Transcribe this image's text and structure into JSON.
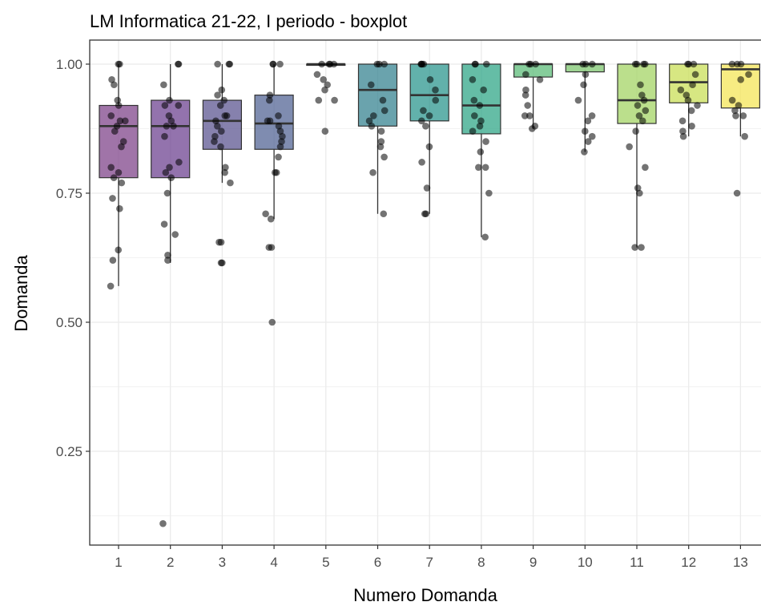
{
  "chart_data": {
    "type": "boxplot",
    "title": "LM Informatica 21-22, I periodo - boxplot",
    "xlabel": "Numero Domanda",
    "ylabel": "Domanda",
    "x_ticks": [
      "1",
      "2",
      "3",
      "4",
      "5",
      "6",
      "7",
      "8",
      "9",
      "10",
      "11",
      "12",
      "13"
    ],
    "y_ticks": [
      "0.25",
      "0.50",
      "0.75",
      "1.00"
    ],
    "y_tick_values": [
      0.25,
      0.5,
      0.75,
      1.0
    ],
    "ylim": [
      0.1,
      1.0
    ],
    "grid": true,
    "categories": [
      {
        "label": "1",
        "color": "#7b3f86",
        "q1": 0.78,
        "median": 0.88,
        "q3": 0.92,
        "whisker_low": 0.57,
        "whisker_high": 1.0,
        "points": [
          1.0,
          1.0,
          0.97,
          0.96,
          0.93,
          0.92,
          0.9,
          0.89,
          0.89,
          0.88,
          0.87,
          0.85,
          0.84,
          0.8,
          0.79,
          0.78,
          0.77,
          0.74,
          0.72,
          0.64,
          0.62,
          0.57
        ]
      },
      {
        "label": "2",
        "color": "#6a3d8e",
        "q1": 0.78,
        "median": 0.88,
        "q3": 0.93,
        "whisker_low": 0.615,
        "whisker_high": 1.0,
        "points": [
          1.0,
          1.0,
          0.96,
          0.93,
          0.92,
          0.92,
          0.9,
          0.89,
          0.88,
          0.88,
          0.86,
          0.81,
          0.8,
          0.79,
          0.78,
          0.75,
          0.69,
          0.67,
          0.63,
          0.62,
          0.11
        ]
      },
      {
        "label": "3",
        "color": "#58508d",
        "q1": 0.835,
        "median": 0.89,
        "q3": 0.93,
        "whisker_low": 0.77,
        "whisker_high": 1.0,
        "points": [
          1.0,
          1.0,
          1.0,
          0.95,
          0.94,
          0.93,
          0.92,
          0.9,
          0.9,
          0.89,
          0.88,
          0.87,
          0.86,
          0.85,
          0.84,
          0.8,
          0.79,
          0.77,
          0.655,
          0.655,
          0.615,
          0.615
        ]
      },
      {
        "label": "4",
        "color": "#4e5f91",
        "q1": 0.835,
        "median": 0.885,
        "q3": 0.94,
        "whisker_low": 0.7,
        "whisker_high": 1.0,
        "points": [
          1.0,
          1.0,
          1.0,
          0.94,
          0.93,
          0.9,
          0.89,
          0.89,
          0.88,
          0.87,
          0.86,
          0.85,
          0.84,
          0.82,
          0.79,
          0.79,
          0.71,
          0.7,
          0.645,
          0.645,
          0.5
        ]
      },
      {
        "label": "5",
        "color": "#3e6e8f",
        "q1": 1.0,
        "median": 1.0,
        "q3": 1.0,
        "whisker_low": 1.0,
        "whisker_high": 1.0,
        "points": [
          1.0,
          1.0,
          1.0,
          1.0,
          0.98,
          0.97,
          0.96,
          0.95,
          0.93,
          0.93,
          0.87
        ]
      },
      {
        "label": "6",
        "color": "#31808d",
        "q1": 0.88,
        "median": 0.95,
        "q3": 1.0,
        "whisker_low": 0.71,
        "whisker_high": 1.0,
        "points": [
          1.0,
          1.0,
          1.0,
          0.96,
          0.93,
          0.91,
          0.9,
          0.89,
          0.88,
          0.87,
          0.85,
          0.84,
          0.82,
          0.79,
          0.71
        ]
      },
      {
        "label": "7",
        "color": "#25938a",
        "q1": 0.89,
        "median": 0.94,
        "q3": 1.0,
        "whisker_low": 0.71,
        "whisker_high": 1.0,
        "points": [
          1.0,
          1.0,
          1.0,
          1.0,
          0.97,
          0.95,
          0.93,
          0.91,
          0.9,
          0.89,
          0.88,
          0.84,
          0.81,
          0.76,
          0.71,
          0.71
        ]
      },
      {
        "label": "8",
        "color": "#29a384",
        "q1": 0.865,
        "median": 0.92,
        "q3": 1.0,
        "whisker_low": 0.665,
        "whisker_high": 1.0,
        "points": [
          1.0,
          1.0,
          1.0,
          0.97,
          0.95,
          0.93,
          0.92,
          0.9,
          0.89,
          0.88,
          0.87,
          0.85,
          0.83,
          0.8,
          0.8,
          0.75,
          0.665
        ]
      },
      {
        "label": "9",
        "color": "#57ba74",
        "q1": 0.975,
        "median": 1.0,
        "q3": 1.0,
        "whisker_low": 0.875,
        "whisker_high": 1.0,
        "points": [
          1.0,
          1.0,
          1.0,
          0.98,
          0.97,
          0.95,
          0.94,
          0.92,
          0.9,
          0.9,
          0.88,
          0.875
        ]
      },
      {
        "label": "10",
        "color": "#78c46a",
        "q1": 0.985,
        "median": 1.0,
        "q3": 1.0,
        "whisker_low": 0.83,
        "whisker_high": 1.0,
        "points": [
          1.0,
          1.0,
          1.0,
          0.98,
          0.96,
          0.93,
          0.9,
          0.89,
          0.87,
          0.86,
          0.85,
          0.83
        ]
      },
      {
        "label": "11",
        "color": "#a1d35f",
        "q1": 0.885,
        "median": 0.93,
        "q3": 1.0,
        "whisker_low": 0.645,
        "whisker_high": 1.0,
        "points": [
          1.0,
          1.0,
          1.0,
          1.0,
          0.96,
          0.94,
          0.93,
          0.92,
          0.91,
          0.9,
          0.89,
          0.87,
          0.84,
          0.8,
          0.76,
          0.75,
          0.645,
          0.645
        ]
      },
      {
        "label": "12",
        "color": "#c8de52",
        "q1": 0.925,
        "median": 0.965,
        "q3": 1.0,
        "whisker_low": 0.86,
        "whisker_high": 1.0,
        "points": [
          1.0,
          1.0,
          1.0,
          0.98,
          0.96,
          0.95,
          0.94,
          0.93,
          0.92,
          0.91,
          0.89,
          0.88,
          0.87,
          0.86
        ]
      },
      {
        "label": "13",
        "color": "#f4e552",
        "q1": 0.915,
        "median": 0.99,
        "q3": 1.0,
        "whisker_low": 0.86,
        "whisker_high": 1.0,
        "points": [
          1.0,
          1.0,
          1.0,
          0.98,
          0.97,
          0.93,
          0.92,
          0.91,
          0.9,
          0.9,
          0.86,
          0.75
        ]
      }
    ]
  }
}
